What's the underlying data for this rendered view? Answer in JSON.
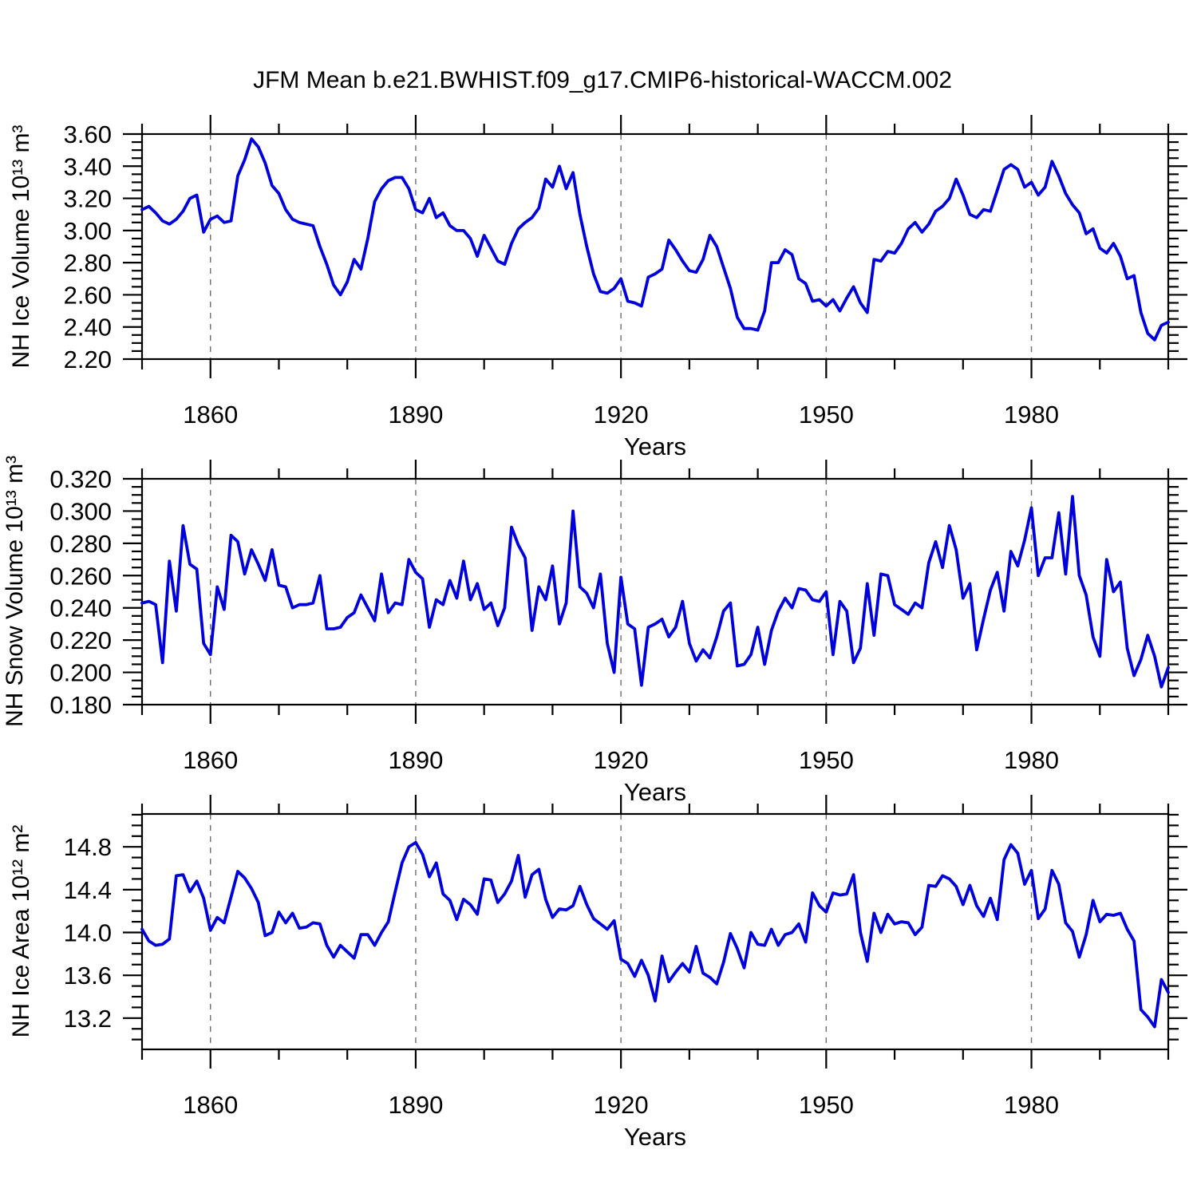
{
  "title": "JFM Mean b.e21.BWHIST.f09_g17.CMIP6-historical-WACCM.002",
  "xlabel": "Years",
  "line_color": "#0000dd",
  "frame_color": "#000000",
  "grid_color": "#6e6e6e",
  "chart_data": [
    {
      "type": "line",
      "name": "nh-ice-volume",
      "ylabel": "NH Ice Volume 10¹³ m³",
      "xlim": [
        1850,
        2000
      ],
      "ylim": [
        2.2,
        3.6
      ],
      "x_major_ticks": [
        1860,
        1890,
        1920,
        1950,
        1980
      ],
      "x_minor_step": 10,
      "y_major_ticks": [
        2.2,
        2.4,
        2.6,
        2.8,
        3.0,
        3.2,
        3.4,
        3.6
      ],
      "y_minor_step": 0.05,
      "y_tick_decimals": 2,
      "x0": 1850,
      "dx": 1,
      "values": [
        3.13,
        3.15,
        3.11,
        3.06,
        3.04,
        3.07,
        3.12,
        3.2,
        3.22,
        2.99,
        3.07,
        3.09,
        3.05,
        3.06,
        3.34,
        3.44,
        3.57,
        3.52,
        3.42,
        3.28,
        3.23,
        3.13,
        3.07,
        3.05,
        3.04,
        3.03,
        2.9,
        2.79,
        2.66,
        2.6,
        2.68,
        2.82,
        2.76,
        2.95,
        3.18,
        3.26,
        3.31,
        3.33,
        3.33,
        3.26,
        3.13,
        3.11,
        3.2,
        3.08,
        3.11,
        3.03,
        3.0,
        3.0,
        2.95,
        2.84,
        2.97,
        2.89,
        2.81,
        2.79,
        2.92,
        3.01,
        3.05,
        3.08,
        3.14,
        3.32,
        3.27,
        3.4,
        3.26,
        3.36,
        3.1,
        2.9,
        2.73,
        2.62,
        2.61,
        2.64,
        2.7,
        2.56,
        2.55,
        2.53,
        2.71,
        2.73,
        2.76,
        2.94,
        2.88,
        2.81,
        2.75,
        2.74,
        2.82,
        2.97,
        2.9,
        2.77,
        2.64,
        2.46,
        2.39,
        2.39,
        2.38,
        2.5,
        2.8,
        2.8,
        2.88,
        2.85,
        2.7,
        2.67,
        2.56,
        2.57,
        2.53,
        2.57,
        2.5,
        2.58,
        2.65,
        2.55,
        2.49,
        2.82,
        2.81,
        2.87,
        2.86,
        2.92,
        3.01,
        3.05,
        2.99,
        3.04,
        3.12,
        3.15,
        3.2,
        3.32,
        3.22,
        3.1,
        3.08,
        3.13,
        3.12,
        3.25,
        3.38,
        3.41,
        3.38,
        3.27,
        3.3,
        3.22,
        3.27,
        3.43,
        3.34,
        3.23,
        3.16,
        3.11,
        2.98,
        3.01,
        2.89,
        2.86,
        2.92,
        2.84,
        2.7,
        2.72,
        2.49,
        2.36,
        2.32,
        2.41,
        2.43
      ]
    },
    {
      "type": "line",
      "name": "nh-snow-volume",
      "ylabel": "NH Snow Volume 10¹³ m³",
      "xlim": [
        1850,
        2000
      ],
      "ylim": [
        0.18,
        0.32
      ],
      "x_major_ticks": [
        1860,
        1890,
        1920,
        1950,
        1980
      ],
      "x_minor_step": 10,
      "y_major_ticks": [
        0.18,
        0.2,
        0.22,
        0.24,
        0.26,
        0.28,
        0.3,
        0.32
      ],
      "y_minor_step": 0.005,
      "y_tick_decimals": 3,
      "x0": 1850,
      "dx": 1,
      "values": [
        0.243,
        0.244,
        0.242,
        0.206,
        0.269,
        0.238,
        0.291,
        0.267,
        0.264,
        0.218,
        0.211,
        0.253,
        0.239,
        0.285,
        0.281,
        0.261,
        0.276,
        0.267,
        0.257,
        0.276,
        0.254,
        0.253,
        0.24,
        0.242,
        0.242,
        0.243,
        0.26,
        0.227,
        0.227,
        0.228,
        0.234,
        0.237,
        0.248,
        0.24,
        0.232,
        0.261,
        0.237,
        0.243,
        0.242,
        0.27,
        0.262,
        0.258,
        0.228,
        0.245,
        0.242,
        0.257,
        0.246,
        0.269,
        0.245,
        0.255,
        0.239,
        0.243,
        0.229,
        0.24,
        0.29,
        0.279,
        0.271,
        0.226,
        0.253,
        0.245,
        0.266,
        0.23,
        0.243,
        0.3,
        0.253,
        0.249,
        0.24,
        0.261,
        0.218,
        0.2,
        0.259,
        0.23,
        0.227,
        0.192,
        0.228,
        0.23,
        0.233,
        0.222,
        0.228,
        0.244,
        0.218,
        0.207,
        0.214,
        0.209,
        0.222,
        0.238,
        0.243,
        0.204,
        0.205,
        0.211,
        0.228,
        0.205,
        0.226,
        0.238,
        0.246,
        0.24,
        0.252,
        0.251,
        0.245,
        0.244,
        0.25,
        0.211,
        0.244,
        0.238,
        0.206,
        0.215,
        0.255,
        0.223,
        0.261,
        0.26,
        0.242,
        0.239,
        0.236,
        0.243,
        0.24,
        0.268,
        0.281,
        0.265,
        0.291,
        0.276,
        0.246,
        0.255,
        0.214,
        0.233,
        0.251,
        0.262,
        0.238,
        0.275,
        0.266,
        0.282,
        0.302,
        0.26,
        0.271,
        0.271,
        0.299,
        0.261,
        0.309,
        0.26,
        0.248,
        0.222,
        0.21,
        0.27,
        0.25,
        0.256,
        0.215,
        0.198,
        0.208,
        0.223,
        0.21,
        0.191,
        0.203
      ]
    },
    {
      "type": "line",
      "name": "nh-ice-area",
      "ylabel": "NH Ice Area 10¹² m²",
      "xlim": [
        1850,
        2000
      ],
      "ylim": [
        12.908,
        15.107
      ],
      "x_major_ticks": [
        1860,
        1890,
        1920,
        1950,
        1980
      ],
      "x_minor_step": 10,
      "y_major_ticks": [
        13.2,
        13.6,
        14.0,
        14.4,
        14.8
      ],
      "y_minor_step": 0.1,
      "y_tick_decimals": 1,
      "x0": 1850,
      "dx": 1,
      "values": [
        14.03,
        13.92,
        13.88,
        13.89,
        13.94,
        14.53,
        14.54,
        14.38,
        14.48,
        14.32,
        14.02,
        14.14,
        14.09,
        14.33,
        14.57,
        14.51,
        14.41,
        14.28,
        13.97,
        14.0,
        14.19,
        14.09,
        14.18,
        14.04,
        14.05,
        14.09,
        14.08,
        13.88,
        13.77,
        13.88,
        13.82,
        13.76,
        13.98,
        13.98,
        13.88,
        14.0,
        14.1,
        14.38,
        14.65,
        14.8,
        14.84,
        14.73,
        14.52,
        14.65,
        14.36,
        14.3,
        14.12,
        14.31,
        14.26,
        14.17,
        14.5,
        14.49,
        14.28,
        14.36,
        14.48,
        14.72,
        14.33,
        14.54,
        14.59,
        14.31,
        14.14,
        14.22,
        14.21,
        14.25,
        14.43,
        14.26,
        14.13,
        14.08,
        14.03,
        14.11,
        13.75,
        13.71,
        13.59,
        13.74,
        13.6,
        13.36,
        13.78,
        13.54,
        13.63,
        13.71,
        13.63,
        13.87,
        13.62,
        13.58,
        13.52,
        13.72,
        13.99,
        13.85,
        13.67,
        14.0,
        13.89,
        13.88,
        14.03,
        13.88,
        13.98,
        14.0,
        14.08,
        13.91,
        14.37,
        14.25,
        14.19,
        14.37,
        14.35,
        14.36,
        14.54,
        14.0,
        13.73,
        14.18,
        14.0,
        14.17,
        14.08,
        14.1,
        14.09,
        13.98,
        14.05,
        14.44,
        14.43,
        14.53,
        14.5,
        14.43,
        14.26,
        14.44,
        14.25,
        14.15,
        14.32,
        14.12,
        14.68,
        14.82,
        14.74,
        14.45,
        14.58,
        14.13,
        14.22,
        14.58,
        14.45,
        14.09,
        14.01,
        13.77,
        13.98,
        14.3,
        14.1,
        14.17,
        14.16,
        14.18,
        14.03,
        13.92,
        13.28,
        13.21,
        13.12,
        13.56,
        13.44
      ]
    }
  ]
}
